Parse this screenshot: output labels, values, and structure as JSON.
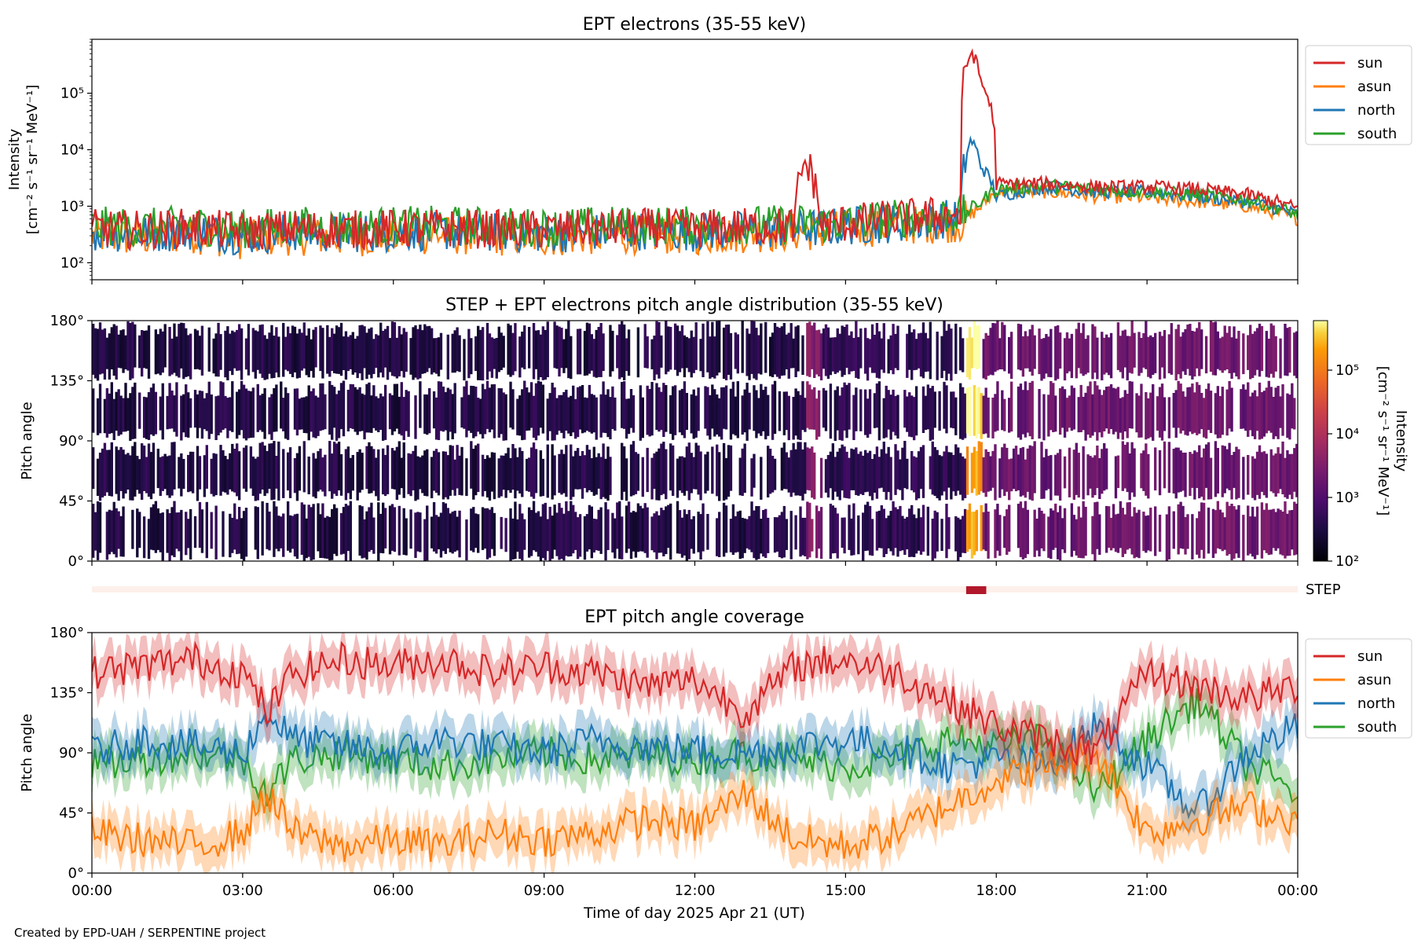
{
  "chart_data": [
    {
      "type": "line",
      "title": "EPT electrons (35-55 keV)",
      "xlabel": "",
      "ylabel_line1": "Intensity",
      "ylabel_line2": "[cm⁻² s⁻¹ sr⁻¹ MeV⁻¹]",
      "yscale": "log",
      "ylim": [
        50,
        900000
      ],
      "yticks": [
        100,
        1000,
        10000,
        100000
      ],
      "ytick_labels": [
        "10²",
        "10³",
        "10⁴",
        "10⁵"
      ],
      "xlim_hours": [
        0,
        24
      ],
      "x_hours": [
        0,
        1,
        2,
        3,
        4,
        5,
        6,
        7,
        8,
        9,
        10,
        11,
        12,
        13,
        14,
        14.2,
        14.5,
        15,
        16,
        17,
        17.3,
        17.5,
        17.7,
        18,
        19,
        20,
        21,
        22,
        23,
        24
      ],
      "series": [
        {
          "name": "sun",
          "color": "#d62728",
          "values": [
            400,
            380,
            420,
            350,
            400,
            380,
            400,
            410,
            390,
            380,
            400,
            420,
            400,
            430,
            450,
            6000,
            450,
            500,
            600,
            700,
            700,
            550000,
            150000,
            2500,
            2500,
            2200,
            2200,
            2000,
            1600,
            900
          ]
        },
        {
          "name": "asun",
          "color": "#ff7f0e",
          "values": [
            300,
            280,
            320,
            250,
            300,
            280,
            300,
            310,
            290,
            280,
            300,
            320,
            300,
            330,
            350,
            360,
            350,
            400,
            450,
            500,
            500,
            700,
            1000,
            1800,
            1800,
            1500,
            1400,
            1200,
            1000,
            600
          ]
        },
        {
          "name": "north",
          "color": "#1f77b4",
          "values": [
            350,
            330,
            370,
            300,
            350,
            330,
            350,
            360,
            340,
            330,
            350,
            370,
            350,
            380,
            400,
            420,
            400,
            450,
            500,
            600,
            600,
            15000,
            5000,
            1500,
            2200,
            1800,
            1800,
            1500,
            1200,
            700
          ]
        },
        {
          "name": "south",
          "color": "#2ca02c",
          "values": [
            450,
            420,
            460,
            400,
            450,
            420,
            450,
            460,
            440,
            420,
            450,
            460,
            450,
            470,
            480,
            500,
            480,
            520,
            600,
            700,
            700,
            900,
            1200,
            2000,
            2300,
            2000,
            1800,
            1600,
            1300,
            700
          ]
        }
      ],
      "legend_location": "outside-upper-right"
    },
    {
      "type": "heatmap",
      "title": "STEP + EPT electrons pitch angle distribution (35-55 keV)",
      "ylabel": "Pitch angle",
      "ylim": [
        0,
        180
      ],
      "yticks": [
        0,
        45,
        90,
        135,
        180
      ],
      "ytick_labels": [
        "0°",
        "45°",
        "90°",
        "135°",
        "180°"
      ],
      "xlim_hours": [
        0,
        24
      ],
      "colorbar_label_line1": "Intensity",
      "colorbar_label_line2": "[cm⁻² s⁻¹ sr⁻¹ MeV⁻¹]",
      "colorbar_scale": "log",
      "colorbar_range": [
        100,
        600000
      ],
      "colorbar_ticks": [
        100,
        1000,
        10000,
        100000
      ],
      "colorbar_tick_labels": [
        "10²",
        "10³",
        "10⁴",
        "10⁵"
      ],
      "colormap": "inferno",
      "time_segments": [
        {
          "start": 0.0,
          "end": 14.2,
          "intensity": 350
        },
        {
          "start": 14.2,
          "end": 14.5,
          "intensity": 3000
        },
        {
          "start": 14.5,
          "end": 17.4,
          "intensity": 450
        },
        {
          "start": 17.4,
          "end": 17.7,
          "intensity": 200000
        },
        {
          "start": 17.7,
          "end": 19.5,
          "intensity": 1800
        },
        {
          "start": 19.5,
          "end": 24.0,
          "intensity": 2000
        }
      ],
      "step_bar": {
        "label": "STEP",
        "active_start": 17.4,
        "active_end": 17.8,
        "color_active": "#b2182b",
        "color_inactive": "#fdf0ea"
      }
    },
    {
      "type": "line",
      "title": "EPT pitch angle coverage",
      "xlabel": "Time of day 2025 Apr 21 (UT)",
      "ylabel": "Pitch angle",
      "ylim": [
        0,
        180
      ],
      "yticks": [
        0,
        45,
        90,
        135,
        180
      ],
      "ytick_labels": [
        "0°",
        "45°",
        "90°",
        "135°",
        "180°"
      ],
      "xlim_hours": [
        0,
        24
      ],
      "xticks_hours": [
        0,
        3,
        6,
        9,
        12,
        15,
        18,
        21,
        24
      ],
      "xtick_labels": [
        "00:00",
        "03:00",
        "06:00",
        "09:00",
        "12:00",
        "15:00",
        "18:00",
        "21:00",
        "00:00"
      ],
      "x_hours": [
        0,
        1,
        2,
        3,
        3.5,
        4,
        5,
        6,
        7,
        8,
        9,
        10,
        11,
        12,
        13,
        14,
        15,
        16,
        17,
        18,
        19,
        20,
        21,
        22,
        23,
        24
      ],
      "band_halfwidth_deg": 15,
      "series": [
        {
          "name": "sun",
          "color": "#d62728",
          "values": [
            150,
            155,
            160,
            150,
            120,
            150,
            160,
            155,
            160,
            150,
            155,
            150,
            140,
            145,
            120,
            155,
            160,
            150,
            130,
            110,
            100,
            90,
            150,
            140,
            130,
            140
          ]
        },
        {
          "name": "asun",
          "color": "#ff7f0e",
          "values": [
            30,
            25,
            20,
            30,
            60,
            30,
            20,
            25,
            20,
            30,
            25,
            30,
            40,
            35,
            60,
            25,
            20,
            30,
            50,
            70,
            80,
            90,
            30,
            40,
            50,
            40
          ]
        },
        {
          "name": "north",
          "color": "#1f77b4",
          "values": [
            90,
            100,
            95,
            90,
            120,
            100,
            95,
            90,
            100,
            95,
            90,
            100,
            95,
            92,
            90,
            95,
            100,
            95,
            80,
            85,
            80,
            110,
            80,
            45,
            90,
            110
          ]
        },
        {
          "name": "south",
          "color": "#2ca02c",
          "values": [
            80,
            85,
            90,
            85,
            60,
            85,
            90,
            85,
            80,
            85,
            90,
            85,
            88,
            85,
            90,
            85,
            80,
            85,
            100,
            95,
            100,
            60,
            100,
            130,
            80,
            60
          ]
        }
      ],
      "legend_location": "outside-upper-right"
    }
  ],
  "footer": {
    "credit": "Created by EPD-UAH / SERPENTINE project"
  }
}
